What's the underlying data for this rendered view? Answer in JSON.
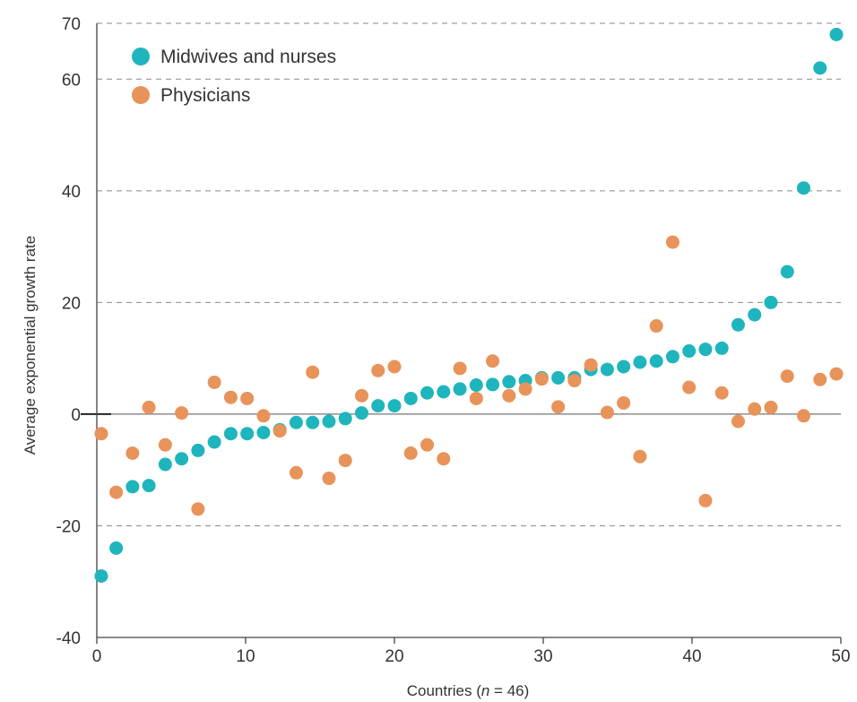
{
  "chart_data": {
    "type": "scatter",
    "title": "",
    "xlabel_prefix": "Countries (",
    "xlabel_var": "n",
    "xlabel_suffix": " = 46)",
    "ylabel": "Average exponential growth rate",
    "xlim": [
      0,
      50
    ],
    "ylim": [
      -40,
      70
    ],
    "xticks": [
      0,
      10,
      20,
      30,
      40,
      50
    ],
    "yticks": [
      70,
      60,
      40,
      20,
      0,
      -20,
      -40
    ],
    "grid": "horizontal dashed",
    "legend_position": "top-left",
    "series": [
      {
        "name": "Midwives and nurses",
        "color": "#1fb5bd",
        "x": [
          0.3,
          1.3,
          2.4,
          3.5,
          4.6,
          5.7,
          6.8,
          7.9,
          9.0,
          10.1,
          11.2,
          12.3,
          13.4,
          14.5,
          15.6,
          16.7,
          17.8,
          18.9,
          20.0,
          21.1,
          22.2,
          23.3,
          24.4,
          25.5,
          26.6,
          27.7,
          28.8,
          29.9,
          31.0,
          32.1,
          33.2,
          34.3,
          35.4,
          36.5,
          37.6,
          38.7,
          39.8,
          40.9,
          42.0,
          43.1,
          44.2,
          45.3,
          46.4,
          47.5,
          48.6,
          49.7
        ],
        "y": [
          -29,
          -24,
          -13,
          -12.8,
          -9,
          -8,
          -6.5,
          -5,
          -3.5,
          -3.5,
          -3.3,
          -2.8,
          -1.5,
          -1.5,
          -1.3,
          -0.8,
          0.2,
          1.5,
          1.5,
          2.8,
          3.8,
          4,
          4.5,
          5.2,
          5.3,
          5.8,
          6,
          6.5,
          6.5,
          6.5,
          8,
          8,
          8.5,
          9.3,
          9.5,
          10.3,
          11.3,
          11.6,
          11.8,
          16,
          17.8,
          20,
          25.5,
          40.5,
          62,
          68
        ]
      },
      {
        "name": "Physicians",
        "color": "#e8935a",
        "x": [
          0.3,
          1.3,
          2.4,
          3.5,
          4.6,
          5.7,
          6.8,
          7.9,
          9.0,
          10.1,
          11.2,
          12.3,
          13.4,
          14.5,
          15.6,
          16.7,
          17.8,
          18.9,
          20.0,
          21.1,
          22.2,
          23.3,
          24.4,
          25.5,
          26.6,
          27.7,
          28.8,
          29.9,
          31.0,
          32.1,
          33.2,
          34.3,
          35.4,
          36.5,
          37.6,
          38.7,
          39.8,
          40.9,
          42.0,
          43.1,
          44.2,
          45.3,
          46.4,
          47.5,
          48.6,
          49.7
        ],
        "y": [
          -3.5,
          -14,
          -7,
          1.2,
          -5.5,
          0.2,
          -17,
          5.7,
          3,
          2.8,
          -0.3,
          -3,
          -10.5,
          7.5,
          -11.5,
          -8.3,
          3.3,
          7.8,
          8.5,
          -7,
          -5.5,
          -8,
          8.2,
          2.8,
          9.5,
          3.3,
          4.5,
          6.3,
          1.3,
          6,
          8.8,
          0.3,
          2,
          -7.6,
          15.8,
          30.8,
          4.8,
          -15.5,
          3.8,
          -1.3,
          0.9,
          1.2,
          6.8,
          -0.3,
          6.2,
          7.2
        ]
      }
    ]
  }
}
